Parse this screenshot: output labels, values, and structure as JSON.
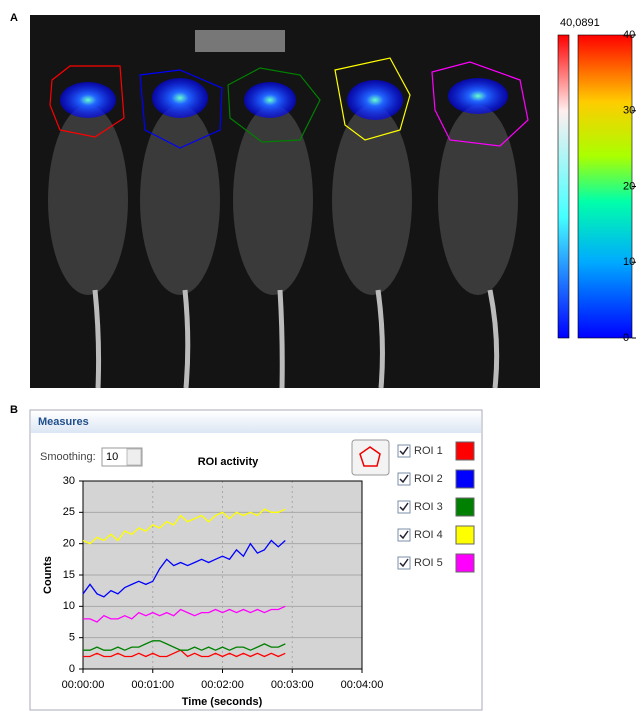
{
  "panel_labels": [
    "A",
    "B"
  ],
  "colorbar": {
    "max_label": "40,0891",
    "range": [
      0,
      40
    ],
    "ticks": [
      0,
      10,
      20,
      30,
      40
    ]
  },
  "window": {
    "title": "Measures",
    "smoothing_label": "Smoothing:",
    "smoothing_value": 10
  },
  "chart_data": {
    "type": "line",
    "title": "ROI activity",
    "x_label": "Time (seconds)",
    "y_label": "Counts",
    "x": [
      0,
      6,
      12,
      18,
      24,
      30,
      36,
      42,
      48,
      54,
      60,
      66,
      72,
      78,
      84,
      90,
      96,
      102,
      108,
      114,
      120,
      126,
      132,
      138,
      144,
      150,
      156,
      162,
      168,
      174
    ],
    "xlim": [
      0,
      240
    ],
    "xticks": [
      {
        "value": 0,
        "label": "00:00:00"
      },
      {
        "value": 60,
        "label": "00:01:00"
      },
      {
        "value": 120,
        "label": "00:02:00"
      },
      {
        "value": 180,
        "label": "00:03:00"
      },
      {
        "value": 240,
        "label": "00:04:00"
      }
    ],
    "ylim": [
      0,
      30
    ],
    "yticks": [
      0,
      5,
      10,
      15,
      20,
      25,
      30
    ],
    "grid": true,
    "series": [
      {
        "name": "ROI 1",
        "color": "#ff0000",
        "values": [
          2,
          2,
          2.5,
          2,
          2,
          2.5,
          2,
          2,
          2.5,
          2,
          2.5,
          2,
          2,
          2.5,
          3,
          2,
          2.5,
          2,
          2,
          2.5,
          2,
          2.5,
          2,
          2.5,
          2,
          2.5,
          2,
          2.5,
          2,
          2.5
        ]
      },
      {
        "name": "ROI 2",
        "color": "#0000ff",
        "values": [
          12,
          13.5,
          12,
          11.5,
          12.5,
          12,
          13,
          13.5,
          14,
          13.5,
          14,
          16,
          17.5,
          16.5,
          17,
          16.5,
          17,
          17.5,
          17,
          17.5,
          18,
          17.5,
          19,
          18,
          20,
          18.5,
          19,
          20.5,
          19.5,
          20.5
        ]
      },
      {
        "name": "ROI 3",
        "color": "#008000",
        "values": [
          3,
          3,
          3.5,
          3,
          3,
          3.5,
          3,
          3.5,
          3.5,
          4,
          4.5,
          4.5,
          4,
          3.5,
          3,
          3,
          3.5,
          3,
          3.5,
          3,
          3.5,
          3,
          3.5,
          3.5,
          3,
          3.5,
          4,
          3.5,
          3.5,
          4
        ]
      },
      {
        "name": "ROI 4",
        "color": "#ffff00",
        "values": [
          20.5,
          20,
          21,
          20.5,
          21.5,
          20.5,
          22,
          21.5,
          22.5,
          22,
          23,
          22.5,
          23.5,
          23,
          24.5,
          23.5,
          24,
          24.5,
          23.5,
          24.5,
          25,
          24,
          25,
          24.5,
          25,
          24.5,
          25.5,
          25,
          25,
          25.5
        ]
      },
      {
        "name": "ROI 5",
        "color": "#ff00ff",
        "values": [
          8,
          8,
          7.5,
          8.5,
          8,
          8,
          8.5,
          8,
          9,
          8.5,
          9,
          8.5,
          9,
          8.5,
          9.5,
          9,
          8.5,
          9,
          9,
          9.5,
          9,
          9.5,
          9,
          9.5,
          9,
          9.5,
          9,
          9.5,
          9.5,
          10
        ]
      }
    ]
  }
}
